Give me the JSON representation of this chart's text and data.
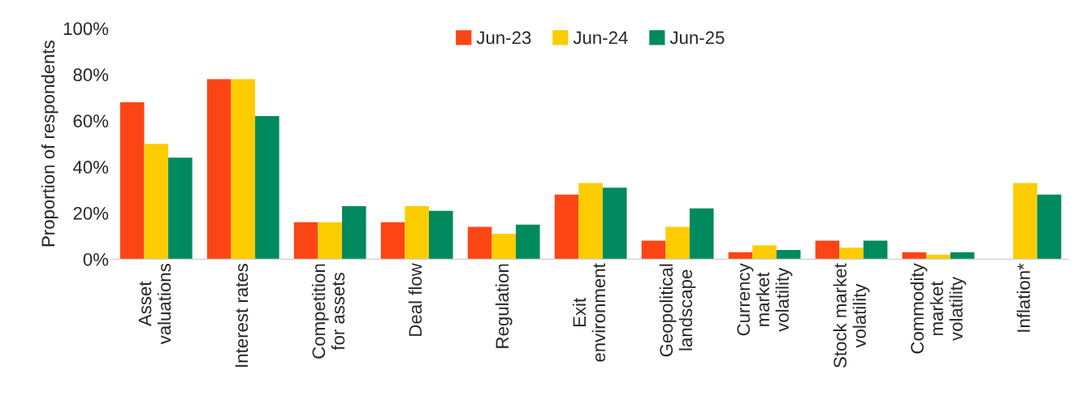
{
  "chart_data": {
    "type": "bar",
    "ylabel": "Proportion of respondents",
    "categories": [
      "Asset\nvaluations",
      "Interest rates",
      "Competition\nfor assets",
      "Deal flow",
      "Regulation",
      "Exit\nenvironment",
      "Geopolitical\nlandscape",
      "Currency\nmarket\nvolatility",
      "Stock market\nvolatility",
      "Commodity\nmarket\nvolatility",
      "Inflation*"
    ],
    "series": [
      {
        "name": "Jun-23",
        "color": "#fc4514",
        "values": [
          68,
          78,
          16,
          16,
          14,
          28,
          8,
          3,
          8,
          3,
          null
        ]
      },
      {
        "name": "Jun-24",
        "color": "#fdcc00",
        "values": [
          50,
          78,
          16,
          23,
          11,
          33,
          14,
          6,
          5,
          2,
          33
        ]
      },
      {
        "name": "Jun-25",
        "color": "#008a5e",
        "values": [
          44,
          62,
          23,
          21,
          15,
          31,
          22,
          4,
          8,
          3,
          28
        ]
      }
    ],
    "ylim": [
      0,
      100
    ],
    "yticks": [
      {
        "value": 0,
        "label": "0%"
      },
      {
        "value": 20,
        "label": "20%"
      },
      {
        "value": 40,
        "label": "40%"
      },
      {
        "value": 60,
        "label": "60%"
      },
      {
        "value": 80,
        "label": "80%"
      },
      {
        "value": 100,
        "label": "100%"
      }
    ],
    "grid": false,
    "legend": "top"
  }
}
